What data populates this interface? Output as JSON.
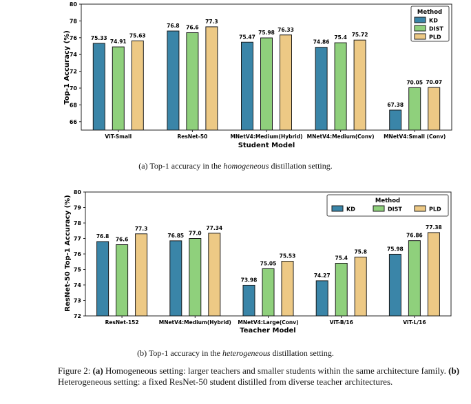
{
  "chart_data": [
    {
      "type": "bar",
      "title": "",
      "xlabel": "Student Model",
      "ylabel": "Top-1 Accuracy (%)",
      "ylim": [
        65,
        80
      ],
      "yticks": [
        66,
        68,
        70,
        72,
        74,
        76,
        78,
        80
      ],
      "grid": false,
      "legend_title": "Method",
      "legend_position": "top-right",
      "categories": [
        "ViT-Small",
        "ResNet-50",
        "MNetV4:Medium(Hybrid)",
        "MNetV4:Medium(Conv)",
        "MNetV4:Small (Conv)"
      ],
      "series": [
        {
          "name": "KD",
          "color": "#3a85a8",
          "values": [
            75.33,
            76.8,
            75.47,
            74.86,
            67.38
          ],
          "labels": [
            "75.33",
            "76.8",
            "75.47",
            "74.86",
            "67.38"
          ]
        },
        {
          "name": "DIST",
          "color": "#8fd07c",
          "values": [
            74.91,
            76.6,
            75.98,
            75.4,
            70.05
          ],
          "labels": [
            "74.91",
            "76.6",
            "75.98",
            "75.4",
            "70.05"
          ]
        },
        {
          "name": "PLD",
          "color": "#edc985",
          "values": [
            75.63,
            77.3,
            76.33,
            75.72,
            70.07
          ],
          "labels": [
            "75.63",
            "77.3",
            "76.33",
            "75.72",
            "70.07"
          ]
        }
      ]
    },
    {
      "type": "bar",
      "title": "",
      "xlabel": "Teacher Model",
      "ylabel": "ResNet-50 Top-1 Accuracy (%)",
      "ylim": [
        72,
        80
      ],
      "yticks": [
        72,
        73,
        74,
        75,
        76,
        77,
        78,
        79,
        80
      ],
      "grid": false,
      "legend_title": "Method",
      "legend_position": "top-right",
      "categories": [
        "ResNet-152",
        "MNetV4:Medium(Hybrid)",
        "MNetV4:Large(Conv)",
        "ViT-B/16",
        "ViT-L/16"
      ],
      "series": [
        {
          "name": "KD",
          "color": "#3a85a8",
          "values": [
            76.8,
            76.85,
            73.98,
            74.27,
            75.98
          ],
          "labels": [
            "76.8",
            "76.85",
            "73.98",
            "74.27",
            "75.98"
          ]
        },
        {
          "name": "DIST",
          "color": "#8fd07c",
          "values": [
            76.6,
            77.0,
            75.05,
            75.4,
            76.86
          ],
          "labels": [
            "76.6",
            "77.0",
            "75.05",
            "75.4",
            "76.86"
          ]
        },
        {
          "name": "PLD",
          "color": "#edc985",
          "values": [
            77.3,
            77.34,
            75.53,
            75.8,
            77.38
          ],
          "labels": [
            "77.3",
            "77.34",
            "75.53",
            "75.8",
            "77.38"
          ]
        }
      ]
    }
  ],
  "captions": {
    "sub_a_prefix": "(a) Top-1 accuracy in the ",
    "sub_a_em": "homogeneous",
    "sub_a_suffix": " distillation setting.",
    "sub_b_prefix": "(b) Top-1 accuracy in the ",
    "sub_b_em": "heterogeneous",
    "sub_b_suffix": " distillation setting.",
    "figure_label": "Figure 2: ",
    "part_a_tag": "(a)",
    "part_a_text": " Homogeneous setting: larger teachers and smaller students within the same architecture family. ",
    "part_b_tag": "(b)",
    "part_b_text": " Heterogeneous setting: a fixed ResNet-50 student distilled from diverse teacher architectures."
  }
}
